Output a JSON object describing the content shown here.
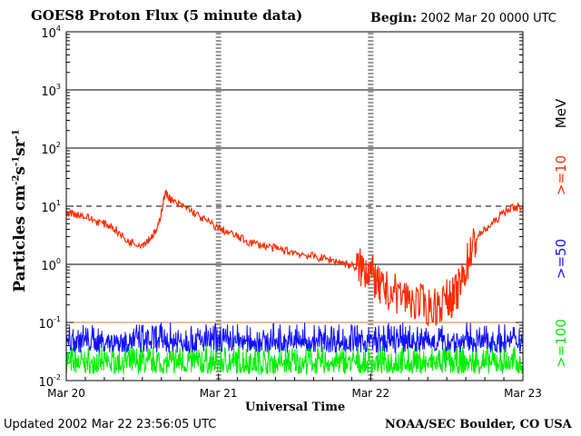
{
  "header": {
    "title": "GOES8 Proton Flux (5 minute data)",
    "begin_label": "Begin:",
    "begin_value": "2002 Mar 20 0000 UTC"
  },
  "footer": {
    "updated_label": "Updated",
    "updated_value": "2002 Mar 22 23:56:05 UTC",
    "organization": "NOAA/SEC Boulder, CO USA"
  },
  "chart_data": {
    "type": "line",
    "title": "GOES8 Proton Flux (5 minute data)",
    "xlabel": "Universal Time",
    "ylabel": "Particles cm-2s-1sr-1",
    "ylabel_parts": {
      "base": "Particles cm",
      "e1": "-2",
      "m1": "s",
      "e2": "-1",
      "m2": "sr",
      "e3": "-1"
    },
    "y_scale": "log",
    "ylim_exponents": [
      -2,
      4
    ],
    "y_ticks": [
      {
        "base": "10",
        "exp": "-2"
      },
      {
        "base": "10",
        "exp": "-1"
      },
      {
        "base": "10",
        "exp": "0"
      },
      {
        "base": "10",
        "exp": "1"
      },
      {
        "base": "10",
        "exp": "2"
      },
      {
        "base": "10",
        "exp": "3"
      },
      {
        "base": "10",
        "exp": "4"
      }
    ],
    "x_ticks": [
      "Mar 20",
      "Mar 21",
      "Mar 22",
      "Mar 23"
    ],
    "x_range_days": [
      0,
      3
    ],
    "right_axis_unit": "MeV",
    "threshold_lines": [
      {
        "value": 10,
        "style": "dashed"
      },
      {
        "value": 0.1,
        "style": "solid",
        "color": "#c08040"
      }
    ],
    "series": [
      {
        "name": ">=10",
        "color": "#ff2a00",
        "x": [
          0.0,
          0.1,
          0.2,
          0.3,
          0.4,
          0.5,
          0.55,
          0.6,
          0.65,
          0.7,
          0.8,
          0.9,
          1.0,
          1.1,
          1.2,
          1.3,
          1.4,
          1.5,
          1.6,
          1.7,
          1.8,
          1.9,
          1.95,
          2.0,
          2.05,
          2.1,
          2.2,
          2.3,
          2.4,
          2.5,
          2.55,
          2.6,
          2.65,
          2.7,
          2.8,
          2.9,
          3.0
        ],
        "y": [
          8,
          7,
          5.5,
          4.5,
          2.5,
          2.2,
          2.8,
          4,
          17,
          12,
          9,
          6,
          4.2,
          3.2,
          2.4,
          2.1,
          1.8,
          1.6,
          1.4,
          1.25,
          1.1,
          0.9,
          0.85,
          0.8,
          0.4,
          0.35,
          0.3,
          0.22,
          0.18,
          0.25,
          0.28,
          0.5,
          1.5,
          3,
          5,
          9,
          10
        ]
      },
      {
        "name": ">=50",
        "color": "#1010ff",
        "mean": 0.055,
        "spread_low": 0.03,
        "spread_high": 0.1
      },
      {
        "name": ">=100",
        "color": "#00ee00",
        "mean": 0.022,
        "spread_low": 0.013,
        "spread_high": 0.04
      }
    ]
  }
}
